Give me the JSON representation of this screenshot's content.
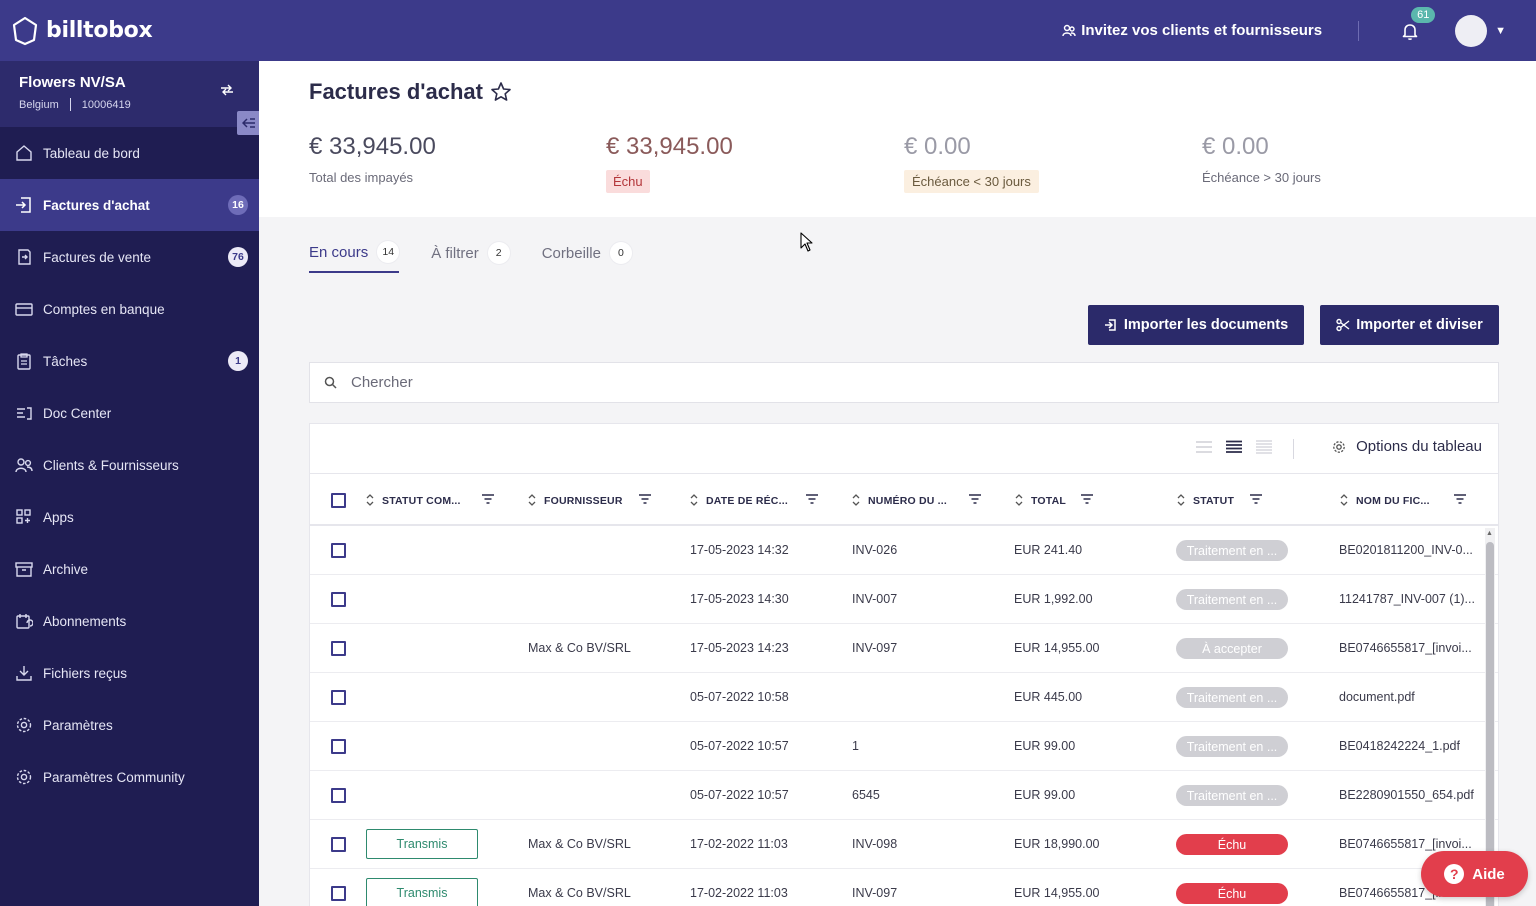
{
  "app": {
    "logo_text": "billtobox",
    "invite_label": "Invitez vos clients et fournisseurs",
    "notifications_count": "61"
  },
  "org": {
    "name": "Flowers NV/SA",
    "country": "Belgium",
    "id": "10006419"
  },
  "sidebar": {
    "items": [
      {
        "label": "Tableau de bord",
        "icon": "home-icon",
        "badge": ""
      },
      {
        "label": "Factures d'achat",
        "icon": "purchase-invoice-icon",
        "badge": "16"
      },
      {
        "label": "Factures de vente",
        "icon": "sales-invoice-icon",
        "badge": "76"
      },
      {
        "label": "Comptes en banque",
        "icon": "bank-card-icon",
        "badge": ""
      },
      {
        "label": "Tâches",
        "icon": "clipboard-icon",
        "badge": "1"
      },
      {
        "label": "Doc Center",
        "icon": "doc-center-icon",
        "badge": ""
      },
      {
        "label": "Clients & Fournisseurs",
        "icon": "people-icon",
        "badge": ""
      },
      {
        "label": "Apps",
        "icon": "apps-grid-icon",
        "badge": ""
      },
      {
        "label": "Archive",
        "icon": "archive-box-icon",
        "badge": ""
      },
      {
        "label": "Abonnements",
        "icon": "subscription-icon",
        "badge": ""
      },
      {
        "label": "Fichiers reçus",
        "icon": "download-tray-icon",
        "badge": ""
      },
      {
        "label": "Paramètres",
        "icon": "gear-icon",
        "badge": ""
      },
      {
        "label": "Paramètres Community",
        "icon": "gear-icon",
        "badge": ""
      }
    ]
  },
  "page": {
    "title": "Factures d'achat",
    "stats": [
      {
        "amount": "€ 33,945.00",
        "label": "Total des impayés"
      },
      {
        "amount": "€ 33,945.00",
        "label": "Échu"
      },
      {
        "amount": "€ 0.00",
        "label": "Échéance < 30 jours"
      },
      {
        "amount": "€ 0.00",
        "label": "Échéance > 30 jours"
      }
    ],
    "tabs": [
      {
        "label": "En cours",
        "count": "14"
      },
      {
        "label": "À filtrer",
        "count": "2"
      },
      {
        "label": "Corbeille",
        "count": "0"
      }
    ],
    "import_button": "Importer les documents",
    "import_split_button": "Importer et diviser",
    "search_placeholder": "Chercher",
    "table_options_label": "Options du tableau"
  },
  "table": {
    "columns": [
      "STATUT COM...",
      "FOURNISSEUR",
      "DATE DE RÉC...",
      "NUMÉRO DU ...",
      "TOTAL",
      "STATUT",
      "NOM DU FIC..."
    ],
    "rows": [
      {
        "statut_com": "",
        "fournisseur": "",
        "date": "17-05-2023 14:32",
        "numero": "INV-026",
        "total": "EUR 241.40",
        "statut": "Traitement en ...",
        "statut_type": "grey",
        "fichier": "BE0201811200_INV-0..."
      },
      {
        "statut_com": "",
        "fournisseur": "",
        "date": "17-05-2023 14:30",
        "numero": "INV-007",
        "total": "EUR 1,992.00",
        "statut": "Traitement en ...",
        "statut_type": "grey",
        "fichier": "11241787_INV-007 (1)..."
      },
      {
        "statut_com": "",
        "fournisseur": "Max & Co BV/SRL",
        "date": "17-05-2023 14:23",
        "numero": "INV-097",
        "total": "EUR 14,955.00",
        "statut": "À accepter",
        "statut_type": "grey",
        "fichier": "BE0746655817_[invoi..."
      },
      {
        "statut_com": "",
        "fournisseur": "",
        "date": "05-07-2022 10:58",
        "numero": "",
        "total": "EUR 445.00",
        "statut": "Traitement en ...",
        "statut_type": "grey",
        "fichier": "document.pdf"
      },
      {
        "statut_com": "",
        "fournisseur": "",
        "date": "05-07-2022 10:57",
        "numero": "1",
        "total": "EUR 99.00",
        "statut": "Traitement en ...",
        "statut_type": "grey",
        "fichier": "BE0418242224_1.pdf"
      },
      {
        "statut_com": "",
        "fournisseur": "",
        "date": "05-07-2022 10:57",
        "numero": "6545",
        "total": "EUR 99.00",
        "statut": "Traitement en ...",
        "statut_type": "grey",
        "fichier": "BE2280901550_654.pdf"
      },
      {
        "statut_com": "Transmis",
        "fournisseur": "Max & Co BV/SRL",
        "date": "17-02-2022 11:03",
        "numero": "INV-098",
        "total": "EUR 18,990.00",
        "statut": "Échu",
        "statut_type": "red",
        "fichier": "BE0746655817_[invoi..."
      },
      {
        "statut_com": "Transmis",
        "fournisseur": "Max & Co BV/SRL",
        "date": "17-02-2022 11:03",
        "numero": "INV-097",
        "total": "EUR 14,955.00",
        "statut": "Échu",
        "statut_type": "red",
        "fichier": "BE0746655817_[invoi..."
      }
    ]
  },
  "help": {
    "label": "Aide"
  },
  "colors": {
    "brand": "#3c3a8a",
    "sidebar": "#1f1d52",
    "danger": "#e23e4c",
    "success": "#2e8a6e"
  }
}
